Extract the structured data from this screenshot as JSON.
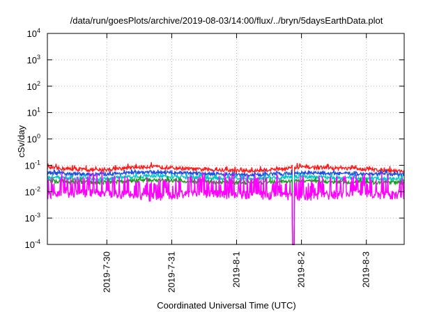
{
  "chart_data": {
    "type": "line",
    "title": "/data/run/goesPlots/archive/2019-08-03/14:00/flux/../bryn/5daysEarthData.plot",
    "xlabel": "Coordinated Universal Time (UTC)",
    "ylabel": "cSv/day",
    "yscale": "log",
    "ylim": [
      0.0001,
      10000
    ],
    "xlim": [
      "2019-07-29 02:00",
      "2019-08-03 14:00"
    ],
    "grid": true,
    "legend": "none",
    "y_ticks": [
      {
        "value": 0.0001,
        "base": "10",
        "exp": "-4"
      },
      {
        "value": 0.001,
        "base": "10",
        "exp": "-3"
      },
      {
        "value": 0.01,
        "base": "10",
        "exp": "-2"
      },
      {
        "value": 0.1,
        "base": "10",
        "exp": "-1"
      },
      {
        "value": 1,
        "base": "10",
        "exp": "0"
      },
      {
        "value": 10,
        "base": "10",
        "exp": "1"
      },
      {
        "value": 100,
        "base": "10",
        "exp": "2"
      },
      {
        "value": 1000,
        "base": "10",
        "exp": "3"
      },
      {
        "value": 10000,
        "base": "10",
        "exp": "4"
      }
    ],
    "x_ticks": [
      {
        "value": "2019-07-30 00:00",
        "label": "2019-7-30"
      },
      {
        "value": "2019-07-31 00:00",
        "label": "2019-7-31"
      },
      {
        "value": "2019-08-01 00:00",
        "label": "2019-8-1"
      },
      {
        "value": "2019-08-02 00:00",
        "label": "2019-8-2"
      },
      {
        "value": "2019-08-03 00:00",
        "label": "2019-8-3"
      }
    ],
    "data_gap": {
      "start": "2019-08-01 20:40",
      "end": "2019-08-01 21:20",
      "min_value": 0.0001
    },
    "series": [
      {
        "color": "#ff1a1a",
        "values": [
          0.08,
          0.065,
          0.09,
          0.07,
          0.06,
          0.085,
          0.075,
          0.06
        ]
      },
      {
        "color": "#1f4fe0",
        "values": [
          0.05,
          0.045,
          0.055,
          0.05,
          0.042,
          0.052,
          0.048,
          0.044
        ]
      },
      {
        "color": "#00c8c8",
        "values": [
          0.035,
          0.03,
          0.04,
          0.033,
          0.03,
          0.038,
          0.032,
          0.03
        ]
      },
      {
        "color": "#1a9a1a",
        "values": [
          0.025,
          0.022,
          0.028,
          0.024,
          0.021,
          0.026,
          0.023,
          0.022
        ]
      },
      {
        "color": "#ff00ff",
        "values": [
          0.007,
          0.009,
          0.006,
          0.008,
          0.007,
          0.006,
          0.008,
          0.007
        ]
      }
    ]
  }
}
